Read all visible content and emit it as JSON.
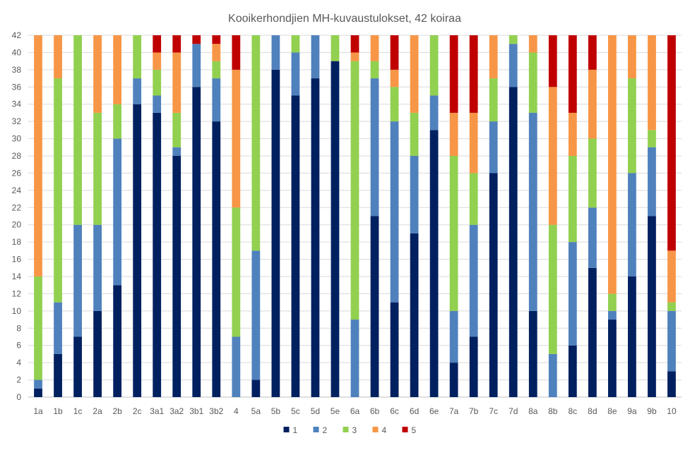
{
  "chart_data": {
    "type": "bar",
    "stacked": true,
    "title": "Kooikerhondjien MH-kuvaustulokset, 42 koiraa",
    "xlabel": "",
    "ylabel": "",
    "ylim": [
      0,
      42
    ],
    "yticks": [
      0,
      2,
      4,
      6,
      8,
      10,
      12,
      14,
      16,
      18,
      20,
      22,
      24,
      26,
      28,
      30,
      32,
      34,
      36,
      38,
      40,
      42
    ],
    "grid": true,
    "legend_position": "bottom",
    "categories": [
      "1a",
      "1b",
      "1c",
      "2a",
      "2b",
      "2c",
      "3a1",
      "3a2",
      "3b1",
      "3b2",
      "4",
      "5a",
      "5b",
      "5c",
      "5d",
      "5e",
      "6a",
      "6b",
      "6c",
      "6d",
      "6e",
      "7a",
      "7b",
      "7c",
      "7d",
      "8a",
      "8b",
      "8c",
      "8d",
      "8e",
      "9a",
      "9b",
      "10"
    ],
    "series": [
      {
        "name": "1",
        "color": "#002060",
        "values": [
          1,
          5,
          7,
          10,
          13,
          34,
          33,
          28,
          36,
          32,
          0,
          2,
          38,
          35,
          37,
          39,
          0,
          21,
          11,
          19,
          31,
          4,
          7,
          26,
          36,
          10,
          0,
          6,
          15,
          9,
          14,
          21,
          3
        ]
      },
      {
        "name": "2",
        "color": "#4f81bd",
        "values": [
          1,
          6,
          13,
          10,
          17,
          3,
          2,
          1,
          5,
          5,
          7,
          15,
          4,
          5,
          5,
          0,
          9,
          16,
          21,
          9,
          4,
          6,
          13,
          6,
          5,
          23,
          5,
          12,
          7,
          1,
          12,
          8,
          7
        ]
      },
      {
        "name": "3",
        "color": "#92d050",
        "values": [
          12,
          26,
          22,
          13,
          4,
          5,
          3,
          4,
          0,
          2,
          15,
          25,
          0,
          2,
          0,
          3,
          30,
          2,
          4,
          5,
          7,
          18,
          6,
          5,
          1,
          7,
          15,
          10,
          8,
          2,
          11,
          2,
          1
        ]
      },
      {
        "name": "4",
        "color": "#f79646",
        "values": [
          28,
          5,
          0,
          9,
          8,
          0,
          2,
          7,
          0,
          2,
          16,
          0,
          0,
          0,
          0,
          0,
          1,
          3,
          2,
          9,
          0,
          5,
          7,
          5,
          0,
          2,
          16,
          5,
          8,
          30,
          5,
          11,
          6
        ]
      },
      {
        "name": "5",
        "color": "#c00000",
        "values": [
          0,
          0,
          0,
          0,
          0,
          0,
          2,
          2,
          1,
          1,
          4,
          0,
          0,
          0,
          0,
          0,
          2,
          0,
          4,
          0,
          0,
          9,
          9,
          0,
          0,
          0,
          6,
          9,
          4,
          0,
          0,
          0,
          25
        ]
      }
    ]
  }
}
